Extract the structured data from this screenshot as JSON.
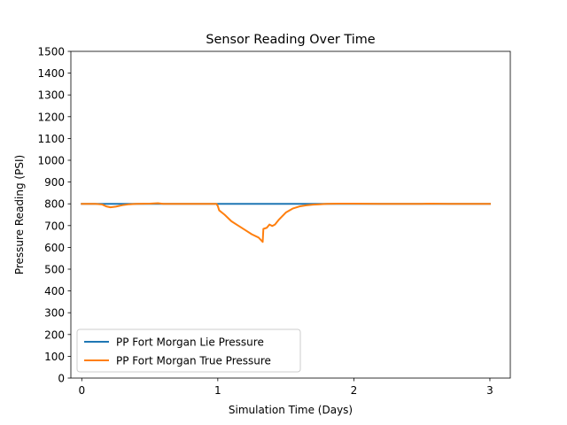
{
  "chart_data": {
    "type": "line",
    "title": "Sensor Reading Over Time",
    "xlabel": "Simulation Time (Days)",
    "ylabel": "Pressure Reading (PSI)",
    "xlim": [
      -0.08,
      3.15
    ],
    "ylim": [
      0,
      1500
    ],
    "xticks": [
      0,
      1,
      2,
      3
    ],
    "yticks": [
      0,
      100,
      200,
      300,
      400,
      500,
      600,
      700,
      800,
      900,
      1000,
      1100,
      1200,
      1300,
      1400,
      1500
    ],
    "grid": false,
    "legend_position": "lower-left",
    "series": [
      {
        "name": "PP Fort Morgan Lie Pressure",
        "color": "#1f77b4",
        "x": [
          0,
          0.5,
          1.0,
          1.5,
          2.0,
          2.5,
          3.0
        ],
        "y": [
          800,
          800,
          800,
          800,
          800,
          800,
          800
        ]
      },
      {
        "name": "PP Fort Morgan True Pressure",
        "color": "#ff7f0e",
        "x": [
          0,
          0.1,
          0.15,
          0.18,
          0.21,
          0.25,
          0.3,
          0.35,
          0.4,
          0.5,
          0.56,
          0.6,
          0.8,
          0.99,
          1.0,
          1.01,
          1.05,
          1.1,
          1.15,
          1.2,
          1.25,
          1.3,
          1.33,
          1.335,
          1.36,
          1.38,
          1.4,
          1.42,
          1.45,
          1.5,
          1.55,
          1.6,
          1.65,
          1.7,
          1.75,
          1.8,
          1.9,
          2.0,
          2.2,
          2.5,
          2.55,
          2.7,
          3.0
        ],
        "y": [
          800,
          800,
          797,
          788,
          784,
          787,
          794,
          798,
          800,
          801,
          803,
          800,
          800,
          800,
          790,
          770,
          750,
          720,
          700,
          680,
          660,
          645,
          625,
          685,
          690,
          705,
          698,
          705,
          728,
          760,
          778,
          788,
          793,
          796,
          798,
          800,
          801,
          801,
          800,
          800,
          801,
          800,
          800
        ]
      }
    ]
  }
}
